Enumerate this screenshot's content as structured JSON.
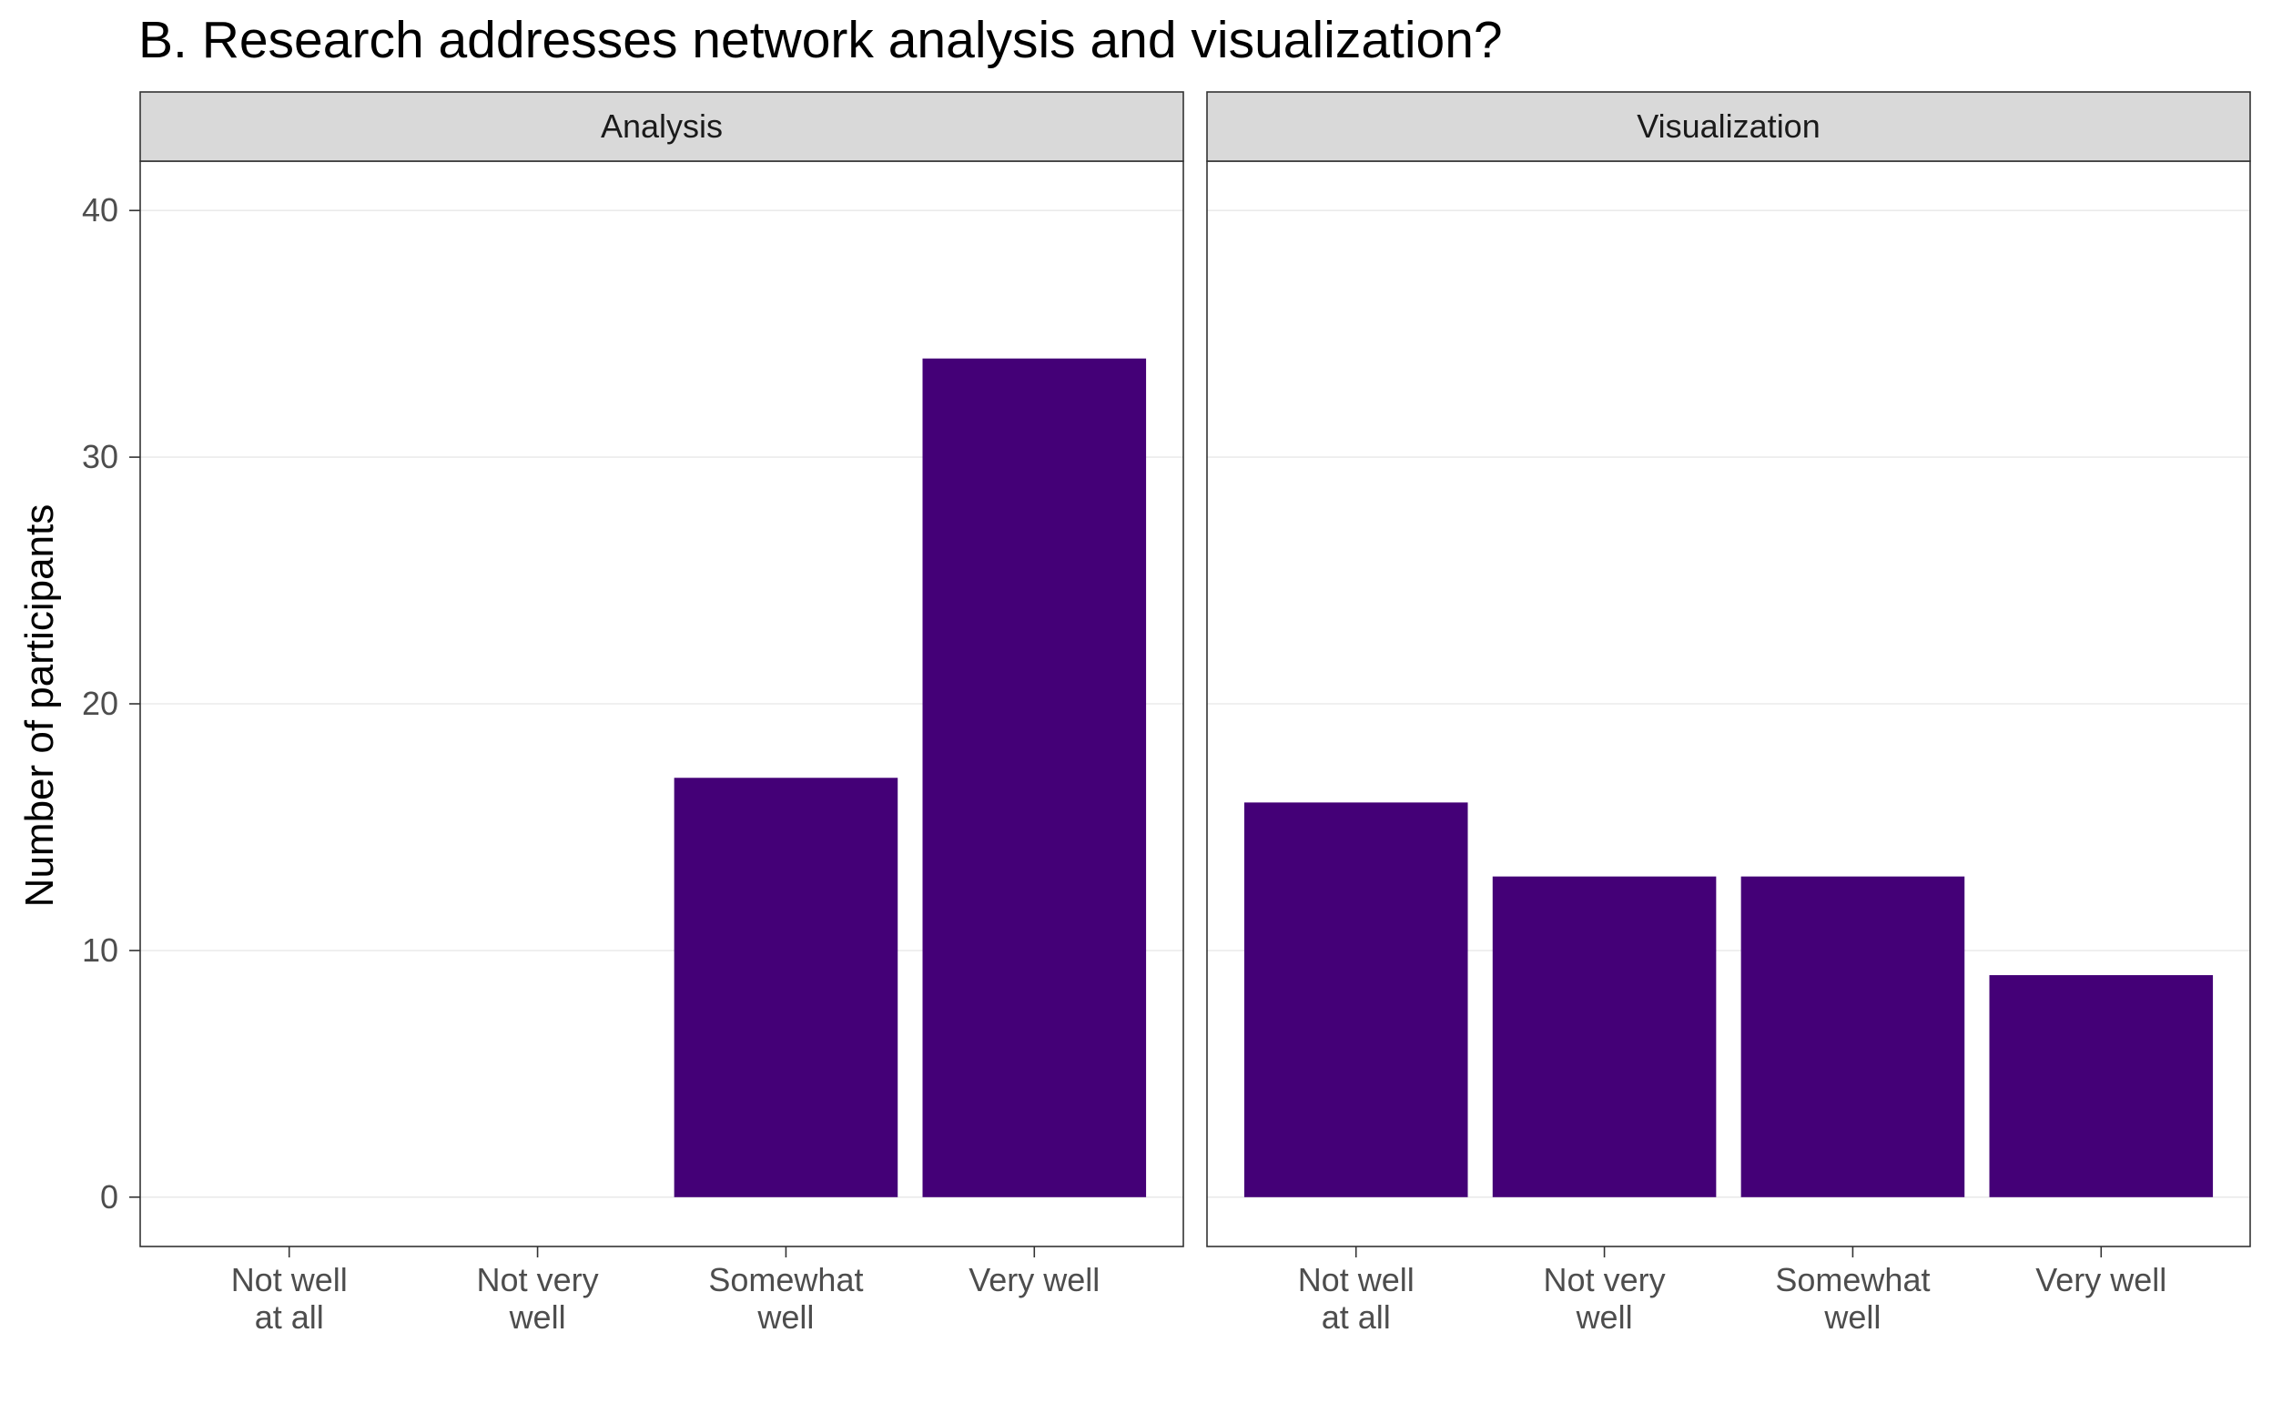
{
  "chart_data": {
    "type": "bar",
    "title": "B. Research addresses network analysis and visualization?",
    "ylabel": "Number of participants",
    "xlabel": "",
    "ylim": [
      -2,
      42
    ],
    "yticks": [
      0,
      10,
      20,
      30,
      40
    ],
    "grid": true,
    "bar_color": "#440077",
    "categories": [
      "Not well\nat all",
      "Not very\nwell",
      "Somewhat\nwell",
      "Very well"
    ],
    "panels": [
      {
        "name": "Analysis",
        "values": [
          0,
          0,
          17,
          34
        ]
      },
      {
        "name": "Visualization",
        "values": [
          16,
          13,
          13,
          9
        ]
      }
    ]
  }
}
